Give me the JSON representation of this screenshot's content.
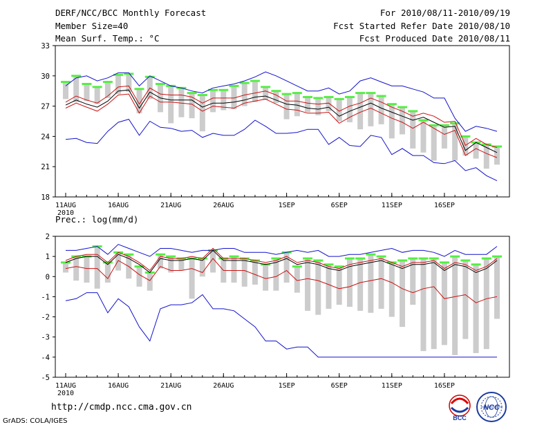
{
  "header": {
    "line1": "DERF/NCC/BCC Monthly Forecast",
    "line2": "Member Size=40",
    "line3": "Mean Surf. Temp.: °C",
    "right1": "For 2010/08/11-2010/09/19",
    "right2": "Fcst Started Refer Date 2010/08/10",
    "right3": "Fcst Produced Date 2010/08/11"
  },
  "footer": {
    "url": "http://cmdp.ncc.cma.gov.cn",
    "grads": "GrADS: COLA/IGES",
    "logo1_text": "BCC",
    "logo2_text": "NCC"
  },
  "colors": {
    "box": "#cccccc",
    "median": "#55ee44",
    "ensemble_mean": "#000000",
    "spread": "#cc1111",
    "envelope": "#1111cc"
  },
  "chart_data": [
    {
      "type": "box",
      "title": "Mean Surf. Temp.: °C",
      "xlabel": "",
      "ylabel": "",
      "ylim": [
        18,
        33
      ],
      "yticks": [
        18,
        21,
        24,
        27,
        30,
        33
      ],
      "x_tick_labels": [
        "11AUG",
        "16AUG",
        "21AUG",
        "26AUG",
        "1SEP",
        "6SEP",
        "11SEP",
        "16SEP"
      ],
      "x_tick_days": [
        0,
        5,
        10,
        15,
        21,
        26,
        31,
        36
      ],
      "year_label": "2010",
      "days": 40,
      "series": {
        "max": [
          29.0,
          29.8,
          30.0,
          29.5,
          29.8,
          30.3,
          30.3,
          29.0,
          30.0,
          29.5,
          29.0,
          28.8,
          28.5,
          28.3,
          28.8,
          29.0,
          29.2,
          29.5,
          29.9,
          30.4,
          30.0,
          29.5,
          29.0,
          28.5,
          28.5,
          28.8,
          28.2,
          28.5,
          29.5,
          29.8,
          29.4,
          29.0,
          29.0,
          28.7,
          28.4,
          27.8,
          27.8,
          25.8,
          24.5,
          25.0,
          24.8,
          24.5
        ],
        "q75": [
          29.4,
          30.0,
          29.2,
          28.9,
          29.4,
          30.1,
          30.2,
          28.7,
          29.9,
          29.2,
          29.0,
          28.8,
          28.3,
          28.1,
          28.6,
          28.6,
          29.0,
          29.3,
          29.5,
          28.9,
          28.5,
          28.2,
          28.3,
          27.9,
          27.8,
          27.9,
          27.7,
          27.9,
          28.3,
          28.3,
          28.0,
          27.2,
          26.9,
          26.5,
          25.6,
          25.1,
          25.1,
          25.3,
          24.0,
          23.4,
          23.2,
          23.0
        ],
        "mean": [
          27.1,
          27.6,
          27.2,
          26.9,
          27.5,
          28.5,
          28.6,
          26.8,
          28.4,
          27.8,
          27.6,
          27.6,
          27.6,
          26.9,
          27.3,
          27.3,
          27.4,
          27.6,
          27.9,
          28.0,
          27.6,
          27.2,
          27.1,
          26.8,
          26.7,
          26.9,
          26.0,
          26.5,
          26.9,
          27.3,
          26.8,
          26.4,
          26.0,
          25.6,
          25.9,
          25.4,
          24.9,
          25.0,
          22.6,
          23.4,
          22.9,
          22.4
        ],
        "spread_hi": [
          27.4,
          28.0,
          27.6,
          27.3,
          28.0,
          28.9,
          29.0,
          27.2,
          28.8,
          28.2,
          28.1,
          28.1,
          27.9,
          27.3,
          27.8,
          27.8,
          27.8,
          28.1,
          28.3,
          28.5,
          28.1,
          27.5,
          27.5,
          27.3,
          27.2,
          27.3,
          26.5,
          27.0,
          27.3,
          27.8,
          27.4,
          26.9,
          26.5,
          26.0,
          26.3,
          26.0,
          25.4,
          25.5,
          23.1,
          23.8,
          23.2,
          22.9
        ],
        "spread_lo": [
          26.8,
          27.3,
          26.9,
          26.5,
          27.2,
          28.1,
          28.2,
          26.3,
          28.0,
          27.4,
          27.4,
          27.3,
          27.2,
          26.5,
          27.0,
          26.9,
          26.8,
          27.3,
          27.5,
          27.7,
          27.2,
          26.7,
          26.6,
          26.3,
          26.3,
          26.4,
          25.3,
          25.9,
          26.4,
          26.8,
          26.3,
          25.8,
          25.4,
          24.8,
          25.4,
          24.8,
          24.2,
          24.6,
          22.1,
          22.8,
          22.3,
          21.9
        ],
        "min": [
          23.7,
          23.8,
          23.4,
          23.3,
          24.5,
          25.4,
          25.7,
          24.1,
          25.5,
          24.9,
          24.8,
          24.5,
          24.6,
          23.9,
          24.3,
          24.1,
          24.1,
          24.7,
          25.6,
          25.0,
          24.3,
          24.3,
          24.4,
          24.7,
          24.7,
          23.2,
          23.9,
          23.1,
          23.0,
          24.1,
          23.9,
          22.2,
          22.8,
          22.1,
          22.1,
          21.4,
          21.3,
          21.6,
          20.6,
          20.9,
          20.1,
          19.6
        ],
        "min_whisk": [
          27.7,
          27.4,
          27.5,
          27.2,
          27.8,
          28.2,
          28.4,
          26.3,
          27.7,
          26.4,
          25.3,
          25.9,
          25.8,
          24.5,
          26.4,
          26.6,
          26.7,
          27.0,
          27.4,
          27.6,
          27.3,
          25.7,
          26.0,
          26.4,
          26.1,
          26.5,
          25.5,
          25.4,
          24.7,
          25.0,
          25.2,
          23.8,
          24.2,
          22.8,
          22.4,
          21.6,
          22.8,
          21.6,
          22.1,
          21.8,
          20.8,
          21.2
        ]
      }
    },
    {
      "type": "box",
      "title": "Prec.: log(mm/d)",
      "xlabel": "",
      "ylabel": "",
      "ylim": [
        -5,
        2
      ],
      "yticks": [
        -5,
        -4,
        -3,
        -2,
        -1,
        0,
        1,
        2
      ],
      "x_tick_labels": [
        "11AUG",
        "16AUG",
        "21AUG",
        "26AUG",
        "1SEP",
        "6SEP",
        "11SEP",
        "16SEP"
      ],
      "x_tick_days": [
        0,
        5,
        10,
        15,
        21,
        26,
        31,
        36
      ],
      "year_label": "2010",
      "days": 40,
      "series": {
        "max": [
          1.3,
          1.3,
          1.4,
          1.5,
          1.1,
          1.6,
          1.4,
          1.2,
          1.0,
          1.4,
          1.4,
          1.3,
          1.2,
          1.3,
          1.3,
          1.4,
          1.4,
          1.2,
          1.2,
          1.2,
          1.1,
          1.2,
          1.3,
          1.2,
          1.3,
          1.0,
          1.0,
          1.1,
          1.1,
          1.2,
          1.3,
          1.4,
          1.2,
          1.3,
          1.3,
          1.2,
          1.0,
          1.3,
          1.1,
          1.1,
          1.1,
          1.5
        ],
        "q75": [
          0.7,
          1.0,
          1.0,
          1.5,
          0.7,
          1.2,
          1.1,
          0.5,
          0.2,
          1.1,
          1.0,
          0.9,
          0.9,
          0.9,
          1.3,
          0.9,
          1.0,
          0.9,
          0.8,
          0.6,
          0.9,
          1.2,
          0.5,
          0.9,
          0.8,
          0.6,
          0.5,
          0.9,
          0.9,
          1.1,
          1.0,
          0.7,
          0.8,
          0.9,
          0.9,
          0.9,
          0.7,
          1.0,
          0.8,
          0.6,
          0.9,
          1.0
        ],
        "mean": [
          0.7,
          0.9,
          1.0,
          1.0,
          0.6,
          1.1,
          0.9,
          0.6,
          0.2,
          0.9,
          0.8,
          0.8,
          0.9,
          0.8,
          1.3,
          0.8,
          0.8,
          0.8,
          0.7,
          0.6,
          0.7,
          0.9,
          0.6,
          0.7,
          0.6,
          0.4,
          0.3,
          0.5,
          0.6,
          0.7,
          0.8,
          0.6,
          0.4,
          0.6,
          0.6,
          0.7,
          0.3,
          0.6,
          0.5,
          0.2,
          0.4,
          0.8
        ],
        "spread_hi": [
          0.8,
          1.0,
          1.1,
          1.1,
          0.7,
          1.2,
          1.0,
          0.7,
          0.3,
          1.0,
          0.9,
          0.9,
          1.0,
          0.9,
          1.4,
          0.9,
          0.9,
          0.9,
          0.8,
          0.7,
          0.8,
          1.0,
          0.7,
          0.8,
          0.7,
          0.5,
          0.4,
          0.6,
          0.7,
          0.8,
          0.9,
          0.7,
          0.5,
          0.7,
          0.7,
          0.8,
          0.4,
          0.7,
          0.6,
          0.3,
          0.5,
          0.9
        ],
        "spread_lo": [
          0.4,
          0.5,
          0.4,
          0.4,
          -0.1,
          0.8,
          0.5,
          0.1,
          -0.2,
          0.5,
          0.3,
          0.3,
          0.4,
          0.2,
          0.9,
          0.3,
          0.3,
          0.3,
          0.1,
          -0.1,
          0.0,
          0.3,
          -0.2,
          -0.1,
          -0.2,
          -0.4,
          -0.6,
          -0.5,
          -0.3,
          -0.2,
          -0.1,
          -0.3,
          -0.6,
          -0.8,
          -0.6,
          -0.5,
          -1.1,
          -1.0,
          -0.9,
          -1.3,
          -1.1,
          -1.0
        ],
        "min": [
          -1.2,
          -1.1,
          -0.8,
          -0.8,
          -1.8,
          -1.1,
          -1.5,
          -2.5,
          -3.2,
          -1.6,
          -1.4,
          -1.4,
          -1.3,
          -0.9,
          -1.6,
          -1.6,
          -1.7,
          -2.1,
          -2.5,
          -3.2,
          -3.2,
          -3.6,
          -3.5,
          -3.5,
          -4.0,
          -4.0,
          -4.0,
          -4.0,
          -4.0,
          -4.0,
          -4.0,
          -4.0,
          -4.0,
          -4.0,
          -4.0,
          -4.0,
          -4.0,
          -4.0,
          -4.0,
          -4.0,
          -4.0,
          -4.0
        ],
        "min_whisk": [
          0.2,
          -0.2,
          -0.3,
          -0.6,
          -0.3,
          0.3,
          -0.1,
          -0.5,
          -0.7,
          0.4,
          0.2,
          0.3,
          -1.1,
          0.0,
          0.2,
          -0.3,
          -0.3,
          -0.5,
          -0.4,
          -0.7,
          -0.7,
          -0.3,
          -0.8,
          -1.7,
          -1.9,
          -1.6,
          -1.4,
          -1.5,
          -1.7,
          -1.8,
          -1.6,
          -2.0,
          -2.5,
          -1.4,
          -3.7,
          -3.6,
          -3.4,
          -3.9,
          -3.1,
          -3.8,
          -3.6,
          -2.1
        ]
      }
    }
  ]
}
